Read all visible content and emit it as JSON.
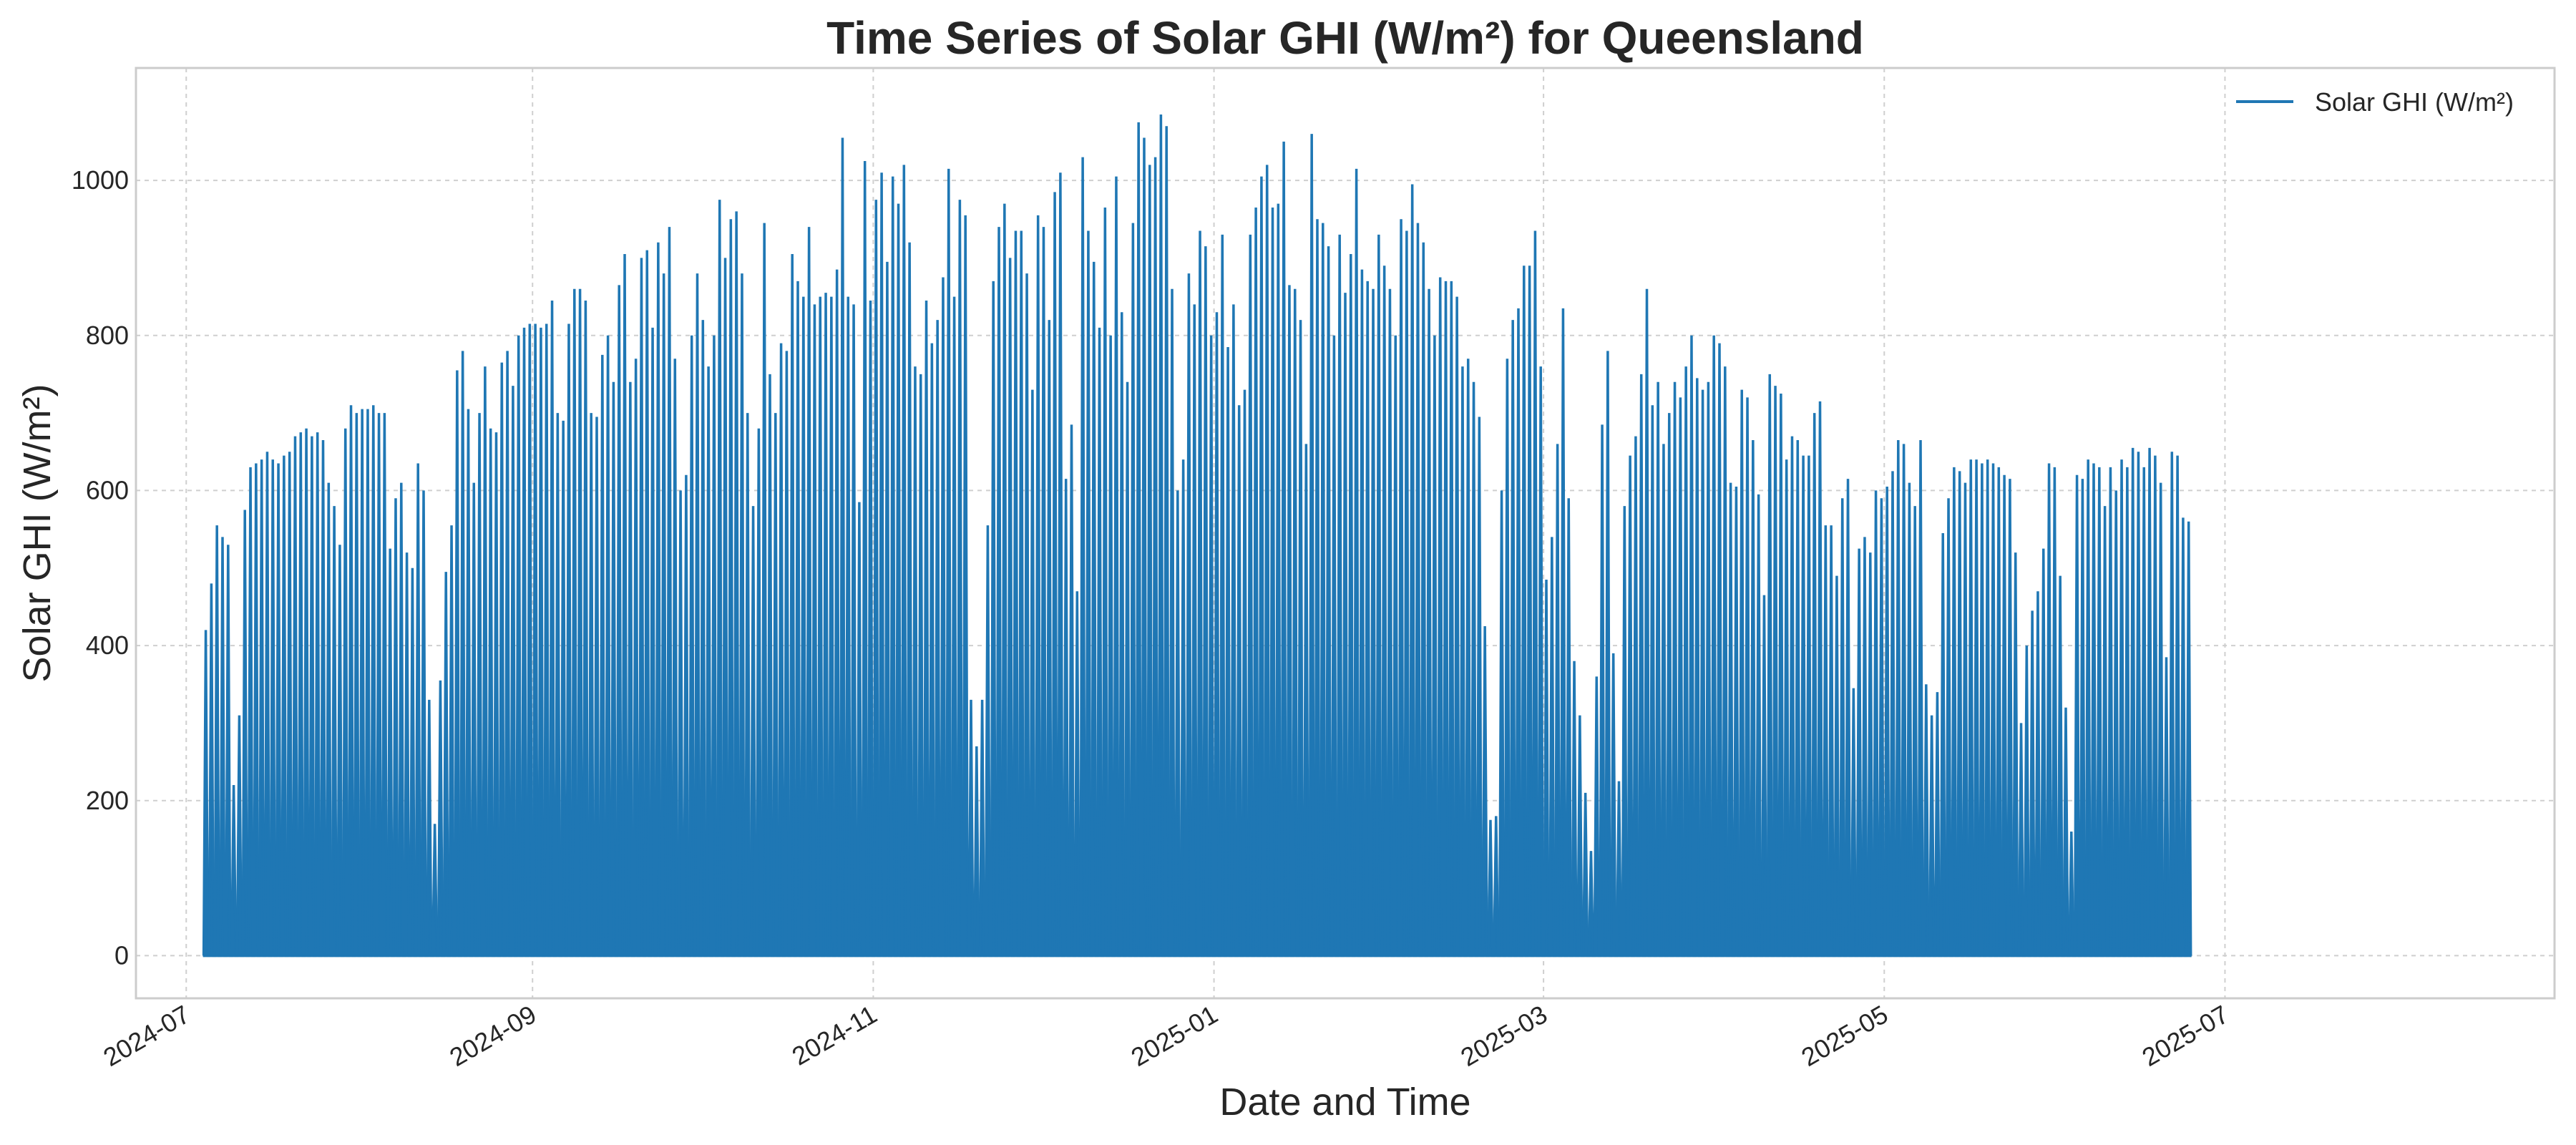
{
  "chart_data": {
    "type": "line",
    "title": "Time Series of Solar GHI (W/m²) for Queensland",
    "xlabel": "Date and Time",
    "ylabel": "Solar GHI (W/m²)",
    "ylim": [
      -55,
      1145
    ],
    "xlim": [
      "2024-06-22",
      "2025-08-29"
    ],
    "x_ticks": [
      "2024-07",
      "2024-09",
      "2024-11",
      "2025-01",
      "2025-03",
      "2025-05",
      "2025-07"
    ],
    "y_ticks": [
      0,
      200,
      400,
      600,
      800,
      1000
    ],
    "grid": true,
    "legend_position": "top-right",
    "series": [
      {
        "name": "Solar GHI (W/m²)",
        "color": "#1f77b4",
        "start_date": "2024-07-04",
        "note": "daily peak values; each day rises from 0 to its peak and returns to 0 overnight",
        "daily_peaks": [
          420,
          480,
          555,
          540,
          530,
          220,
          310,
          575,
          630,
          635,
          640,
          650,
          640,
          635,
          645,
          650,
          670,
          675,
          680,
          670,
          675,
          665,
          610,
          580,
          530,
          680,
          710,
          700,
          705,
          705,
          710,
          700,
          700,
          525,
          590,
          610,
          520,
          500,
          635,
          600,
          330,
          170,
          355,
          495,
          555,
          755,
          780,
          705,
          610,
          700,
          760,
          680,
          675,
          765,
          780,
          735,
          800,
          810,
          815,
          815,
          810,
          815,
          845,
          700,
          690,
          815,
          860,
          860,
          845,
          700,
          695,
          775,
          800,
          740,
          865,
          905,
          740,
          770,
          900,
          910,
          810,
          920,
          880,
          940,
          770,
          600,
          620,
          800,
          880,
          820,
          760,
          800,
          975,
          900,
          950,
          960,
          880,
          700,
          580,
          680,
          945,
          750,
          700,
          790,
          780,
          905,
          870,
          850,
          940,
          840,
          850,
          855,
          850,
          885,
          1055,
          850,
          840,
          585,
          1025,
          845,
          975,
          1010,
          895,
          1005,
          970,
          1020,
          920,
          760,
          750,
          845,
          790,
          820,
          875,
          1015,
          850,
          975,
          955,
          330,
          270,
          330,
          555,
          870,
          940,
          970,
          900,
          935,
          935,
          880,
          730,
          955,
          940,
          820,
          985,
          1010,
          615,
          685,
          470,
          1030,
          935,
          895,
          810,
          965,
          800,
          1005,
          830,
          740,
          945,
          1075,
          1055,
          1020,
          1030,
          1085,
          1070,
          860,
          600,
          640,
          880,
          840,
          935,
          915,
          800,
          830,
          930,
          785,
          840,
          710,
          730,
          930,
          965,
          1005,
          1020,
          965,
          970,
          1050,
          865,
          860,
          820,
          660,
          1060,
          950,
          945,
          915,
          800,
          930,
          855,
          905,
          1015,
          885,
          870,
          860,
          930,
          890,
          860,
          800,
          950,
          935,
          995,
          945,
          920,
          860,
          800,
          875,
          870,
          870,
          850,
          760,
          770,
          740,
          695,
          425,
          175,
          180,
          600,
          770,
          820,
          835,
          890,
          890,
          935,
          760,
          485,
          540,
          660,
          835,
          590,
          380,
          310,
          210,
          135,
          360,
          685,
          780,
          390,
          225,
          580,
          645,
          670,
          750,
          860,
          710,
          740,
          660,
          700,
          740,
          720,
          760,
          800,
          745,
          730,
          740,
          800,
          790,
          760,
          610,
          605,
          730,
          720,
          665,
          595,
          465,
          750,
          735,
          725,
          640,
          670,
          665,
          645,
          645,
          700,
          715,
          555,
          555,
          490,
          590,
          615,
          345,
          525,
          540,
          520,
          600,
          590,
          605,
          625,
          665,
          660,
          610,
          580,
          665,
          350,
          310,
          340,
          545,
          590,
          630,
          625,
          610,
          640,
          640,
          635,
          640,
          635,
          630,
          620,
          615,
          520,
          300,
          400,
          445,
          470,
          525,
          635,
          630,
          490,
          320,
          160,
          620,
          615,
          640,
          635,
          630,
          580,
          630,
          600,
          640,
          630,
          655,
          650,
          630,
          655,
          645,
          610,
          385,
          650,
          645,
          565,
          560
        ]
      }
    ]
  }
}
